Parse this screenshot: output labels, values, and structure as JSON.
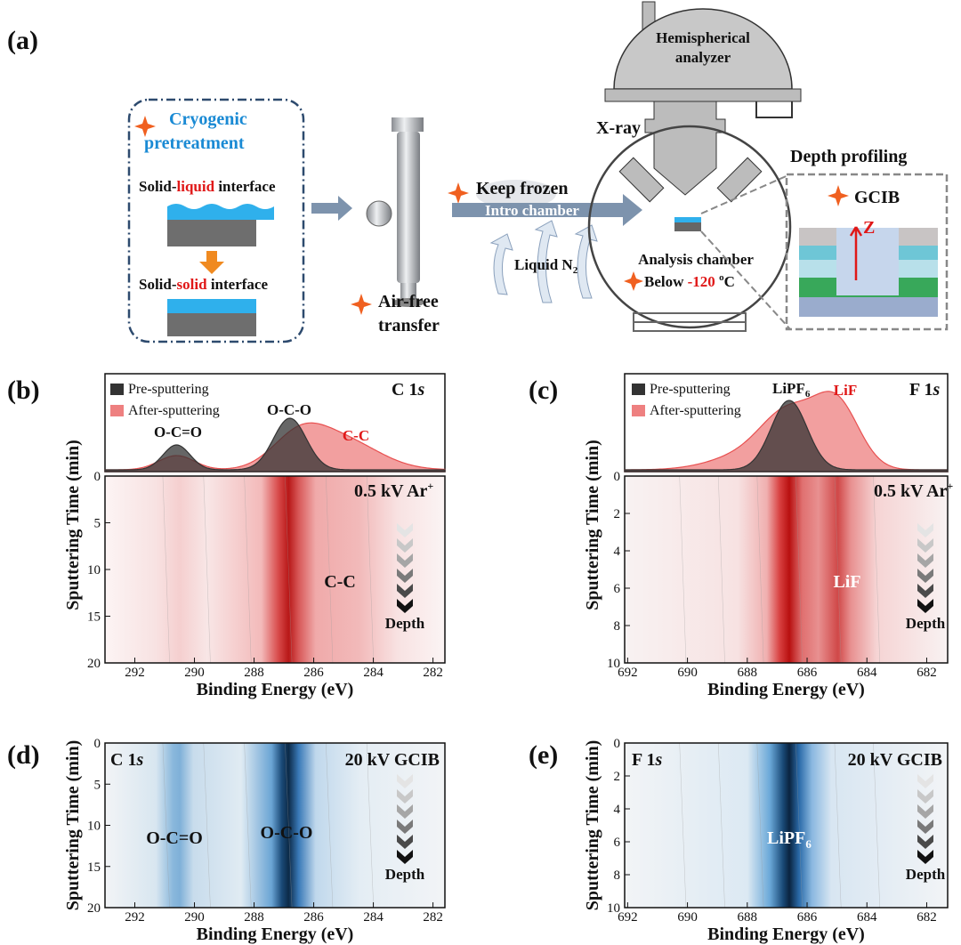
{
  "panels": {
    "a": {
      "label": "(a)",
      "pretreatment": {
        "title": [
          "Cryogenic",
          "pretreatment"
        ],
        "solid_liquid": [
          "Solid-",
          "liquid",
          " interface"
        ],
        "solid_solid": [
          "Solid-",
          "solid",
          " interface"
        ]
      },
      "transfer": [
        "Air-free",
        "transfer"
      ],
      "keep_frozen": "Keep frozen",
      "intro_chamber": "Intro chamber",
      "liquid_n2": [
        "Liquid N",
        "2"
      ],
      "analyzer": [
        "Hemispherical",
        "analyzer"
      ],
      "xray": "X-ray",
      "analysis_chamber": "Analysis chamber",
      "below": [
        "Below ",
        "-120",
        " ",
        "o",
        "C"
      ],
      "depth_profiling": "Depth profiling",
      "gcib": "GCIB",
      "z": "Z"
    },
    "b": {
      "label": "(b)",
      "legend": [
        "Pre-sputtering",
        "After-sputtering"
      ],
      "element": [
        "C 1",
        "s"
      ],
      "peaks": [
        "O-C=O",
        "O-C-O",
        "C-C"
      ],
      "beam": [
        "0.5 kV Ar",
        "+"
      ],
      "map_label": "C-C",
      "depth": "Depth",
      "xlabel": "Binding Energy (eV)",
      "ylabel": "Sputtering Time (min)",
      "xlim": [
        293,
        281.6
      ],
      "ylim": [
        0,
        20
      ],
      "xticks": [
        292,
        290,
        288,
        286,
        284,
        282
      ],
      "yticks": [
        0,
        5,
        10,
        15,
        20
      ]
    },
    "c": {
      "label": "(c)",
      "legend": [
        "Pre-sputtering",
        "After-sputtering"
      ],
      "element": [
        "F 1",
        "s"
      ],
      "peaks": [
        [
          "LiPF",
          "6"
        ],
        "LiF"
      ],
      "beam": [
        "0.5 kV Ar",
        "+"
      ],
      "map_label": "LiF",
      "depth": "Depth",
      "xlabel": "Binding Energy (eV)",
      "ylabel": "Sputtering Time (min)",
      "xlim": [
        692.1,
        681.3
      ],
      "ylim": [
        0,
        10
      ],
      "xticks": [
        692,
        690,
        688,
        686,
        684,
        682
      ],
      "yticks": [
        0,
        2,
        4,
        6,
        8,
        10
      ]
    },
    "d": {
      "label": "(d)",
      "element": [
        "C 1",
        "s"
      ],
      "beam": "20 kV GCIB",
      "map_labels": [
        "O-C=O",
        "O-C-O"
      ],
      "depth": "Depth",
      "xlabel": "Binding Energy (eV)",
      "ylabel": "Sputtering Time (min)",
      "xlim": [
        293,
        281.6
      ],
      "ylim": [
        0,
        20
      ],
      "xticks": [
        292,
        290,
        288,
        286,
        284,
        282
      ],
      "yticks": [
        0,
        5,
        10,
        15,
        20
      ]
    },
    "e": {
      "label": "(e)",
      "element": [
        "F 1",
        "s"
      ],
      "beam": "20 kV GCIB",
      "map_label": [
        "LiPF",
        "6"
      ],
      "depth": "Depth",
      "xlabel": "Binding Energy (eV)",
      "ylabel": "Sputtering Time (min)",
      "xlim": [
        692.1,
        681.3
      ],
      "ylim": [
        0,
        10
      ],
      "xticks": [
        692,
        690,
        688,
        686,
        684,
        682
      ],
      "yticks": [
        0,
        2,
        4,
        6,
        8,
        10
      ]
    }
  }
}
